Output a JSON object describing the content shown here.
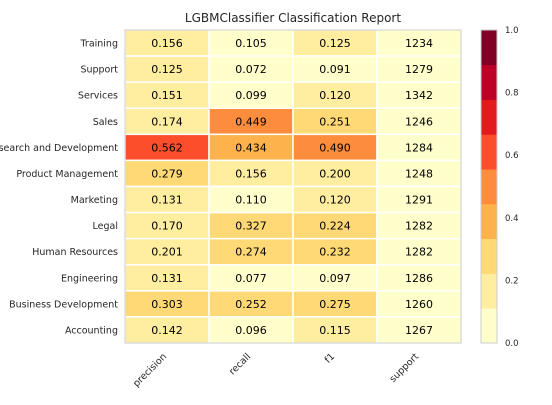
{
  "chart_data": {
    "type": "heatmap",
    "title": "LGBMClassifier Classification Report",
    "rows": [
      "Training",
      "Support",
      "Services",
      "Sales",
      "Research and Development",
      "Product Management",
      "Marketing",
      "Legal",
      "Human Resources",
      "Engineering",
      "Business Development",
      "Accounting"
    ],
    "columns": [
      "precision",
      "recall",
      "f1",
      "support"
    ],
    "values": [
      [
        0.156,
        0.105,
        0.125,
        1234
      ],
      [
        0.125,
        0.072,
        0.091,
        1279
      ],
      [
        0.151,
        0.099,
        0.12,
        1342
      ],
      [
        0.174,
        0.449,
        0.251,
        1246
      ],
      [
        0.562,
        0.434,
        0.49,
        1284
      ],
      [
        0.279,
        0.156,
        0.2,
        1248
      ],
      [
        0.131,
        0.11,
        0.12,
        1291
      ],
      [
        0.17,
        0.327,
        0.224,
        1282
      ],
      [
        0.201,
        0.274,
        0.232,
        1282
      ],
      [
        0.131,
        0.077,
        0.097,
        1286
      ],
      [
        0.303,
        0.252,
        0.275,
        1260
      ],
      [
        0.142,
        0.096,
        0.115,
        1267
      ]
    ],
    "cell_labels": [
      [
        "0.156",
        "0.105",
        "0.125",
        "1234"
      ],
      [
        "0.125",
        "0.072",
        "0.091",
        "1279"
      ],
      [
        "0.151",
        "0.099",
        "0.120",
        "1342"
      ],
      [
        "0.174",
        "0.449",
        "0.251",
        "1246"
      ],
      [
        "0.562",
        "0.434",
        "0.490",
        "1284"
      ],
      [
        "0.279",
        "0.156",
        "0.200",
        "1248"
      ],
      [
        "0.131",
        "0.110",
        "0.120",
        "1291"
      ],
      [
        "0.170",
        "0.327",
        "0.224",
        "1282"
      ],
      [
        "0.201",
        "0.274",
        "0.232",
        "1282"
      ],
      [
        "0.131",
        "0.077",
        "0.097",
        "1286"
      ],
      [
        "0.303",
        "0.252",
        "0.275",
        "1260"
      ],
      [
        "0.142",
        "0.096",
        "0.115",
        "1267"
      ]
    ],
    "color_scale": {
      "range": [
        0,
        1
      ],
      "ticks": [
        "0.0",
        "0.2",
        "0.4",
        "0.6",
        "0.8",
        "1.0"
      ],
      "colors": [
        "#ffffcc",
        "#ffeda0",
        "#fed976",
        "#feb24c",
        "#fd8d3c",
        "#fc4e2a",
        "#e31a1c",
        "#bd0026",
        "#800026"
      ],
      "support_color": "#ffffcc"
    },
    "grid": false
  }
}
